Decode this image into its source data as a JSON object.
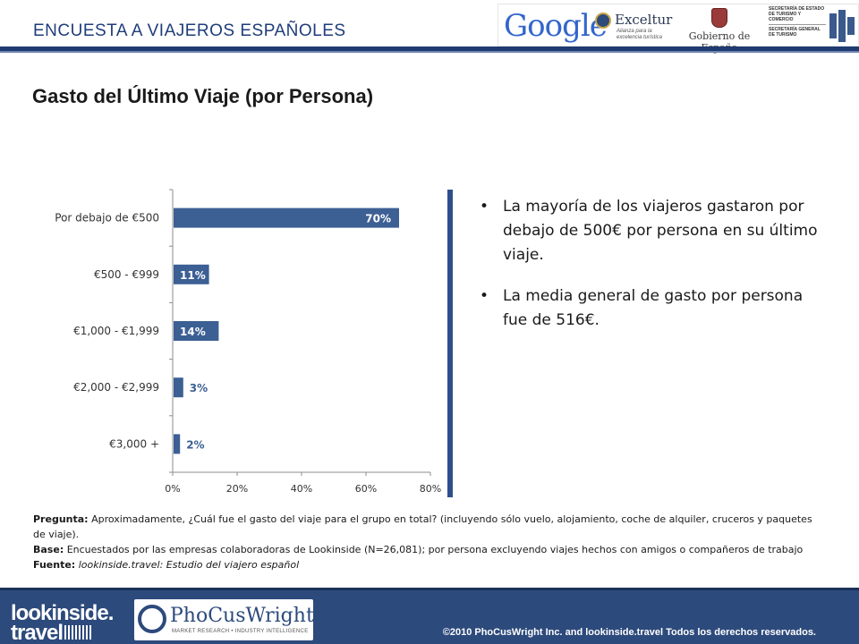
{
  "header": {
    "title": "ENCUESTA  A  VIAJEROS ESPAÑOLES",
    "logos": {
      "google": "Google",
      "exceltur": "Exceltur",
      "exceltur_tag": "Alianza para la excelencia turística",
      "gobierno": "Gobierno de España",
      "secretaria_1": "SECRETARÍA DE ESTADO DE TURISMO Y COMERCIO",
      "secretaria_2": "SECRETARÍA GENERAL DE TURISMO"
    }
  },
  "slide": {
    "title": "Gasto del Último Viaje (por Persona)"
  },
  "chart_data": {
    "type": "bar",
    "orientation": "horizontal",
    "categories": [
      "Por debajo de €500",
      "€500 - €999",
      "€1,000 - €1,999",
      "€2,000 - €2,999",
      "€3,000 +"
    ],
    "values": [
      70,
      11,
      14,
      3,
      2
    ],
    "value_labels": [
      "70%",
      "11%",
      "14%",
      "3%",
      "2%"
    ],
    "xlim": [
      0,
      80
    ],
    "xticks": [
      "0%",
      "20%",
      "40%",
      "60%",
      "80%"
    ],
    "bar_color": "#3c5f94",
    "label_color_inside": "#ffffff",
    "label_color_outside": "#3c5f94"
  },
  "bullets": [
    "La mayoría de los viajeros gastaron por debajo de 500€ por persona en su último viaje.",
    "La media general de gasto por persona fue de 516€."
  ],
  "notes": {
    "pregunta_label": "Pregunta:",
    "pregunta_text": " Aproximadamente, ¿Cuál fue el gasto del viaje para el grupo en total? (incluyendo sólo vuelo, alojamiento, coche de alquiler, cruceros y paquetes de viaje).",
    "base_label": "Base:",
    "base_text": " Encuestados por las empresas colaboradoras de Lookinside  (N=26,081); por persona excluyendo viajes hechos con amigos o compañeros de trabajo",
    "fuente_label": "Fuente:",
    "fuente_text": " lookinside.travel: Estudio del viajero español"
  },
  "footer": {
    "lookinside_line1": "lookinside.",
    "lookinside_line2": "travel",
    "phocus_name": "PhoCusWright",
    "phocus_tag": "MARKET RESEARCH • INDUSTRY INTELLIGENCE",
    "copyright": "©2010 PhoCusWright Inc. and lookinside.travel Todos los derechos reservados."
  }
}
